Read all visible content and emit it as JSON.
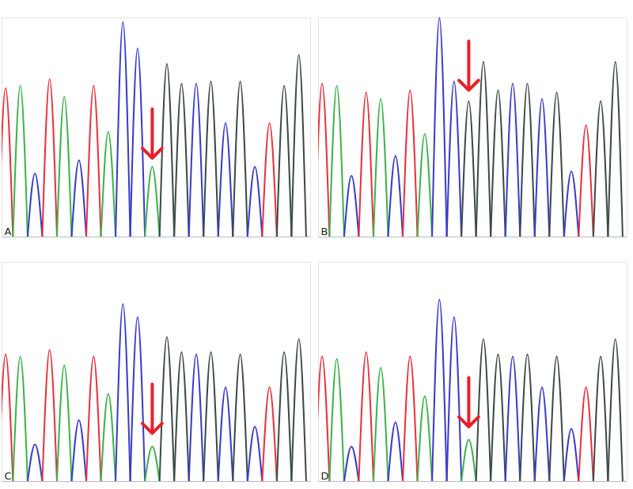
{
  "chart_data": [
    {
      "type": "line",
      "title": "A",
      "x": [
        1,
        2,
        3,
        4,
        5,
        6,
        7,
        8,
        9,
        10,
        11,
        12,
        13,
        14,
        15,
        16,
        17,
        18,
        19,
        20,
        21
      ],
      "values": [
        68,
        69,
        29,
        72,
        64,
        35,
        69,
        48,
        98,
        86,
        32,
        79,
        70,
        70,
        71,
        52,
        71,
        32,
        52,
        69,
        83
      ],
      "colors": [
        "#e8303f",
        "#3bb34a",
        "#3a3acb",
        "#e8303f",
        "#3bb34a",
        "#3a3acb",
        "#e8303f",
        "#3bb34a",
        "#3a3acb",
        "#3a3acb",
        "#3bb34a",
        "#3b4a46",
        "#3b4a46",
        "#3a3acb",
        "#3b4a46",
        "#3a3acb",
        "#3b4a46",
        "#3a3acb",
        "#e8303f",
        "#3b4a46",
        "#3b4a46"
      ],
      "xlim": [
        0.75,
        21.8
      ],
      "ylim": [
        0,
        100
      ],
      "tick_labels": false,
      "annotations": [
        {
          "x": 11,
          "y": 36
        }
      ]
    },
    {
      "type": "line",
      "title": "B",
      "x": [
        1,
        2,
        3,
        4,
        5,
        6,
        7,
        8,
        9,
        10,
        11,
        12,
        13,
        14,
        15,
        16,
        17,
        18,
        19,
        20,
        21
      ],
      "values": [
        70,
        69,
        28,
        66,
        63,
        37,
        67,
        47,
        100,
        71,
        62,
        80,
        67,
        70,
        70,
        63,
        66,
        30,
        51,
        62,
        80
      ],
      "colors": [
        "#e8303f",
        "#3bb34a",
        "#3a3acb",
        "#e8303f",
        "#3bb34a",
        "#3a3acb",
        "#e8303f",
        "#3bb34a",
        "#3a3acb",
        "#3a3acb",
        "#3b4a46",
        "#3b4a46",
        "#3b4a46",
        "#3a3acb",
        "#3b4a46",
        "#3a3acb",
        "#3b4a46",
        "#3a3acb",
        "#e8303f",
        "#3b4a46",
        "#3b4a46"
      ],
      "xlim": [
        0.75,
        21.8
      ],
      "ylim": [
        0,
        100
      ],
      "tick_labels": false,
      "annotations": [
        {
          "x": 11,
          "y": 67
        }
      ]
    },
    {
      "type": "line",
      "title": "C",
      "x": [
        1,
        2,
        3,
        4,
        5,
        6,
        7,
        8,
        9,
        10,
        11,
        12,
        13,
        14,
        15,
        16,
        17,
        18,
        19,
        20,
        21
      ],
      "values": [
        58,
        57,
        17,
        60,
        53,
        28,
        57,
        40,
        81,
        75,
        16,
        66,
        59,
        58,
        59,
        43,
        58,
        25,
        43,
        59,
        65
      ],
      "colors": [
        "#e8303f",
        "#3bb34a",
        "#3a3acb",
        "#e8303f",
        "#3bb34a",
        "#3a3acb",
        "#e8303f",
        "#3bb34a",
        "#3a3acb",
        "#3a3acb",
        "#3bb34a",
        "#3b4a46",
        "#3b4a46",
        "#3a3acb",
        "#3b4a46",
        "#3a3acb",
        "#3b4a46",
        "#3a3acb",
        "#e8303f",
        "#3b4a46",
        "#3b4a46"
      ],
      "xlim": [
        0.75,
        21.8
      ],
      "ylim": [
        0,
        100
      ],
      "tick_labels": false,
      "annotations": [
        {
          "x": 11,
          "y": 22
        }
      ]
    },
    {
      "type": "line",
      "title": "D",
      "x": [
        1,
        2,
        3,
        4,
        5,
        6,
        7,
        8,
        9,
        10,
        11,
        12,
        13,
        14,
        15,
        16,
        17,
        18,
        19,
        20,
        21
      ],
      "values": [
        57,
        56,
        16,
        59,
        52,
        27,
        57,
        39,
        83,
        75,
        19,
        65,
        58,
        57,
        58,
        43,
        57,
        24,
        43,
        57,
        65
      ],
      "colors": [
        "#e8303f",
        "#3bb34a",
        "#3a3acb",
        "#e8303f",
        "#3bb34a",
        "#3a3acb",
        "#e8303f",
        "#3bb34a",
        "#3a3acb",
        "#3a3acb",
        "#3bb34a",
        "#3b4a46",
        "#3b4a46",
        "#3a3acb",
        "#3b4a46",
        "#3a3acb",
        "#3b4a46",
        "#3a3acb",
        "#e8303f",
        "#3b4a46",
        "#3b4a46"
      ],
      "xlim": [
        0.75,
        21.8
      ],
      "ylim": [
        0,
        100
      ],
      "tick_labels": false,
      "annotations": [
        {
          "x": 11,
          "y": 25
        }
      ]
    }
  ]
}
